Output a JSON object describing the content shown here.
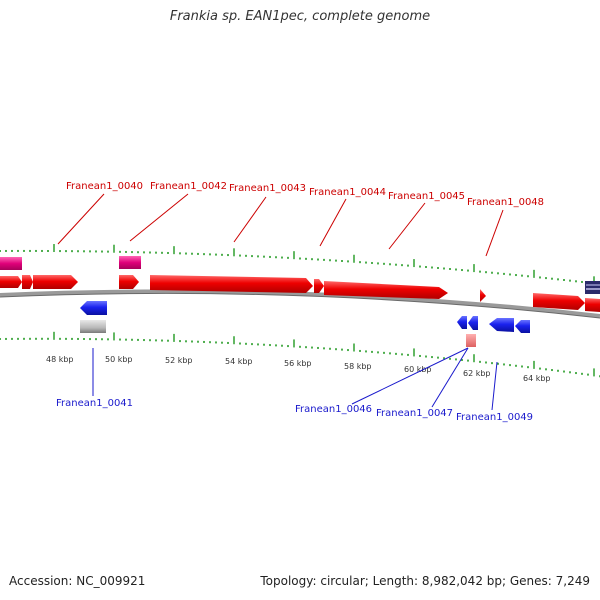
{
  "title": "Frankia sp. EAN1pec, complete genome",
  "footer": {
    "accession": "Accession: NC_009921",
    "stats": "Topology: circular; Length: 8,982,042 bp; Genes: 7,249"
  },
  "colors": {
    "forward_cds": "#ee0000",
    "reverse_cds": "#1a22ee",
    "forward_rna": "#e0007a",
    "reverse_rna": "#b8b8b8",
    "pseudo_fwd": "#ee8080",
    "tick": "#229922",
    "backbone": "#9a9a9a",
    "label_top": "#cc0000",
    "label_bottom": "#1a1acc"
  },
  "scale": {
    "kbp_labels": [
      "48 kbp",
      "50 kbp",
      "52 kbp",
      "54 kbp",
      "56 kbp",
      "58 kbp",
      "60 kbp",
      "62 kbp",
      "64 kbp"
    ]
  },
  "labels_top": [
    "Franean1_0040",
    "Franean1_0042",
    "Franean1_0043",
    "Franean1_0044",
    "Franean1_0045",
    "Franean1_0048"
  ],
  "labels_bottom": [
    "Franean1_0041",
    "Franean1_0046",
    "Franean1_0047",
    "Franean1_0049"
  ]
}
